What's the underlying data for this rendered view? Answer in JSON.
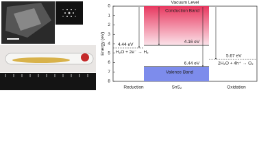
{
  "chart_data": {
    "type": "band",
    "top_label": "Vacuum Level",
    "y_label": "Energy (eV)",
    "material": "SnS₂",
    "ylim": [
      0,
      8
    ],
    "yticks": [
      0,
      1,
      2,
      3,
      4,
      5,
      6,
      7,
      8
    ],
    "conduction_band": {
      "name": "Conduction Band",
      "value": 4.16,
      "label": "4.16 eV",
      "color": "#e8385f"
    },
    "valence_band": {
      "name": "Valence Band",
      "value": 6.44,
      "label": "6.44 eV",
      "color": "#7d8cec"
    },
    "reduction": {
      "name": "Reduction",
      "value": 4.44,
      "label": "4.44 eV",
      "reaction": "H₂O + 2e⁻ → H₂"
    },
    "oxidation": {
      "name": "Oxidation",
      "value": 5.67,
      "label": "5.67 eV",
      "reaction": "2H₂O + 4h⁺ → O₂"
    }
  }
}
